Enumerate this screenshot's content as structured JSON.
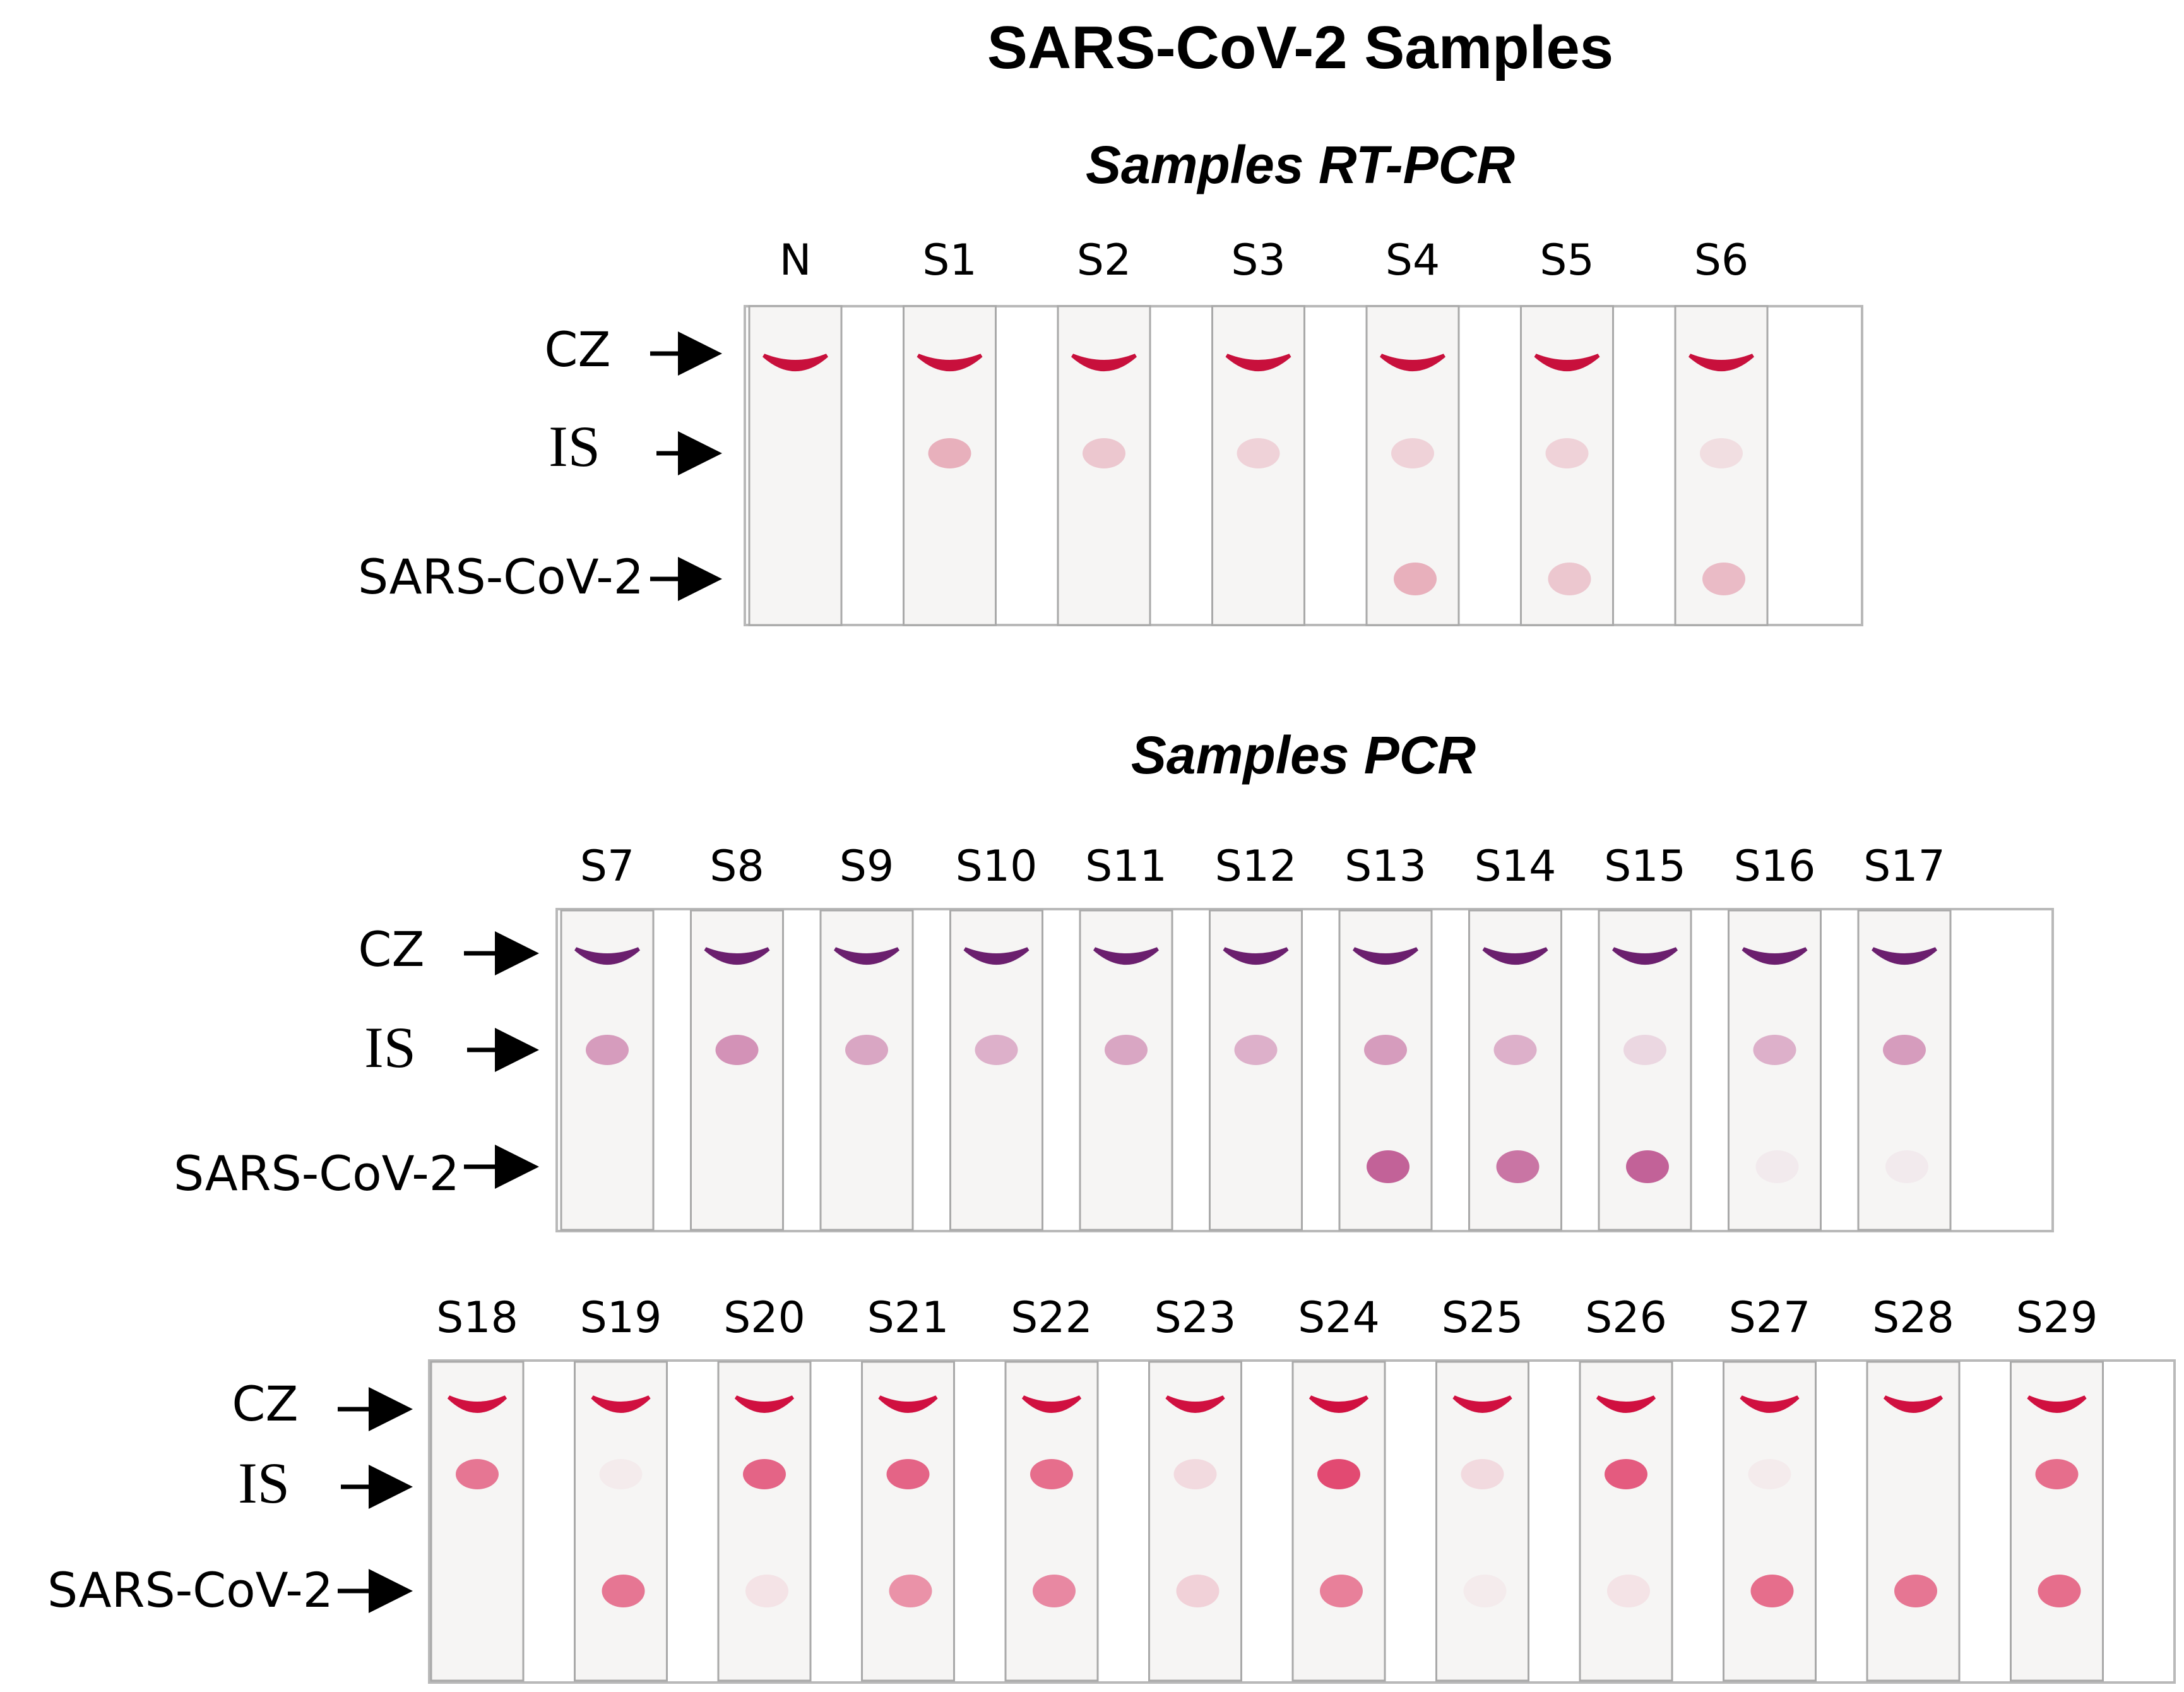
{
  "title": "SARS-CoV-2 Samples",
  "panels": [
    {
      "id": "rt-pcr",
      "subtitle": "Samples RT-PCR",
      "row_labels": [
        "CZ",
        "IS",
        "SARS-CoV-2"
      ],
      "strips": [
        {
          "label": "N",
          "cz": 1.0,
          "is": 0.0,
          "sars": 0.0
        },
        {
          "label": "S1",
          "cz": 1.0,
          "is": 0.3,
          "sars": 0.0
        },
        {
          "label": "S2",
          "cz": 1.0,
          "is": 0.2,
          "sars": 0.0
        },
        {
          "label": "S3",
          "cz": 1.0,
          "is": 0.15,
          "sars": 0.0
        },
        {
          "label": "S4",
          "cz": 1.0,
          "is": 0.15,
          "sars": 0.3
        },
        {
          "label": "S5",
          "cz": 1.0,
          "is": 0.15,
          "sars": 0.2
        },
        {
          "label": "S6",
          "cz": 1.0,
          "is": 0.1,
          "sars": 0.25
        }
      ]
    },
    {
      "id": "pcr-a",
      "subtitle": "Samples PCR",
      "row_labels": [
        "CZ",
        "IS",
        "SARS-CoV-2"
      ],
      "strips": [
        {
          "label": "S7",
          "cz": 1.0,
          "is": 0.45,
          "sars": 0.0
        },
        {
          "label": "S8",
          "cz": 1.0,
          "is": 0.5,
          "sars": 0.0
        },
        {
          "label": "S9",
          "cz": 1.0,
          "is": 0.4,
          "sars": 0.0
        },
        {
          "label": "S10",
          "cz": 1.0,
          "is": 0.35,
          "sars": 0.0
        },
        {
          "label": "S11",
          "cz": 1.0,
          "is": 0.4,
          "sars": 0.0
        },
        {
          "label": "S12",
          "cz": 1.0,
          "is": 0.35,
          "sars": 0.0
        },
        {
          "label": "S13",
          "cz": 1.0,
          "is": 0.45,
          "sars": 0.75
        },
        {
          "label": "S14",
          "cz": 1.0,
          "is": 0.35,
          "sars": 0.65
        },
        {
          "label": "S15",
          "cz": 1.0,
          "is": 0.15,
          "sars": 0.75
        },
        {
          "label": "S16",
          "cz": 1.0,
          "is": 0.35,
          "sars": 0.05
        },
        {
          "label": "S17",
          "cz": 1.0,
          "is": 0.45,
          "sars": 0.05
        }
      ]
    },
    {
      "id": "pcr-b",
      "subtitle": "",
      "row_labels": [
        "CZ",
        "IS",
        "SARS-CoV-2"
      ],
      "strips": [
        {
          "label": "S18",
          "cz": 1.0,
          "is": 0.7,
          "sars": 0.0
        },
        {
          "label": "S19",
          "cz": 1.0,
          "is": 0.05,
          "sars": 0.7
        },
        {
          "label": "S20",
          "cz": 1.0,
          "is": 0.8,
          "sars": 0.1
        },
        {
          "label": "S21",
          "cz": 1.0,
          "is": 0.8,
          "sars": 0.55
        },
        {
          "label": "S22",
          "cz": 1.0,
          "is": 0.75,
          "sars": 0.6
        },
        {
          "label": "S23",
          "cz": 1.0,
          "is": 0.15,
          "sars": 0.2
        },
        {
          "label": "S24",
          "cz": 1.0,
          "is": 0.95,
          "sars": 0.65
        },
        {
          "label": "S25",
          "cz": 1.0,
          "is": 0.15,
          "sars": 0.05
        },
        {
          "label": "S26",
          "cz": 1.0,
          "is": 0.85,
          "sars": 0.1
        },
        {
          "label": "S27",
          "cz": 1.0,
          "is": 0.05,
          "sars": 0.75
        },
        {
          "label": "S28",
          "cz": 1.0,
          "is": 0.0,
          "sars": 0.7
        },
        {
          "label": "S29",
          "cz": 1.0,
          "is": 0.75,
          "sars": 0.75
        }
      ]
    }
  ],
  "colors": {
    "rt_pcr_band": "#c8103c",
    "pcr_a_band": "#6b1f6e",
    "pcr_a_spot": "#b0307a",
    "pcr_b_band": "#d01040",
    "pcr_b_spot": "#e0406a",
    "strip_fill": "#f6f5f4",
    "panel_border": "#b9b9b9"
  }
}
